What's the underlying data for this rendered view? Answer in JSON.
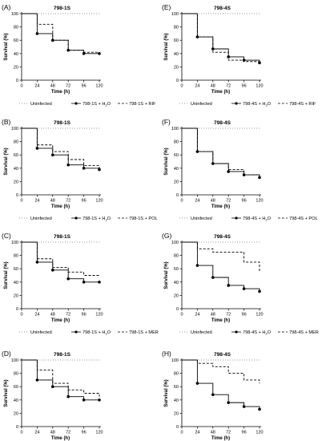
{
  "chart_data": [
    {
      "panel_label": "(A)",
      "title": "798-1S",
      "type": "line",
      "xlabel": "Time (h)",
      "ylabel": "Survival (%)",
      "xlim": [
        0,
        120
      ],
      "ylim": [
        0,
        100
      ],
      "x_ticks": [
        "0",
        "24",
        "48",
        "72",
        "96",
        "120"
      ],
      "y_ticks": [
        "0",
        "20",
        "40",
        "60",
        "80",
        "100"
      ],
      "legend": [
        "Uninfected",
        "798-1S + H₂O",
        "798-1S + RIF"
      ],
      "series": [
        {
          "name": "Uninfected",
          "style": "dotted",
          "x": [
            0,
            120
          ],
          "values": [
            100,
            100
          ]
        },
        {
          "name": "798-1S + H₂O",
          "style": "solid",
          "markers": true,
          "x": [
            0,
            24,
            48,
            72,
            96,
            120
          ],
          "values": [
            100,
            70,
            60,
            45,
            40,
            40
          ]
        },
        {
          "name": "798-1S + RIF",
          "style": "dashed",
          "x": [
            0,
            24,
            48,
            72,
            96,
            120
          ],
          "values": [
            100,
            84,
            60,
            45,
            42,
            42
          ]
        }
      ]
    },
    {
      "panel_label": "(B)",
      "title": "798-1S",
      "type": "line",
      "xlabel": "Time (h)",
      "ylabel": "Survival (%)",
      "xlim": [
        0,
        120
      ],
      "ylim": [
        0,
        100
      ],
      "x_ticks": [
        "0",
        "24",
        "48",
        "72",
        "96",
        "120"
      ],
      "y_ticks": [
        "0",
        "20",
        "40",
        "60",
        "80",
        "100"
      ],
      "legend": [
        "Uninfected",
        "798-1S + H₂O",
        "798-1S + POL"
      ],
      "series": [
        {
          "name": "Uninfected",
          "style": "dotted",
          "x": [
            0,
            120
          ],
          "values": [
            100,
            100
          ]
        },
        {
          "name": "798-1S + H₂O",
          "style": "solid",
          "markers": true,
          "x": [
            0,
            24,
            48,
            72,
            96,
            120
          ],
          "values": [
            100,
            70,
            60,
            45,
            40,
            38
          ]
        },
        {
          "name": "798-1S + POL",
          "style": "dashed",
          "x": [
            0,
            24,
            48,
            72,
            96,
            120
          ],
          "values": [
            100,
            75,
            65,
            53,
            44,
            40
          ]
        }
      ]
    },
    {
      "panel_label": "(C)",
      "title": "798-1S",
      "type": "line",
      "xlabel": "Time (h)",
      "ylabel": "Survival (%)",
      "xlim": [
        0,
        120
      ],
      "ylim": [
        0,
        100
      ],
      "x_ticks": [
        "0",
        "24",
        "48",
        "72",
        "96",
        "120"
      ],
      "y_ticks": [
        "0",
        "20",
        "40",
        "60",
        "80",
        "100"
      ],
      "legend": [
        "Uninfected",
        "798-1S + H₂O",
        "798-1S + MER"
      ],
      "series": [
        {
          "name": "Uninfected",
          "style": "dotted",
          "x": [
            0,
            120
          ],
          "values": [
            100,
            100
          ]
        },
        {
          "name": "798-1S + H₂O",
          "style": "solid",
          "markers": true,
          "x": [
            0,
            24,
            48,
            72,
            96,
            120
          ],
          "values": [
            100,
            70,
            58,
            45,
            40,
            40
          ]
        },
        {
          "name": "798-1S + MER",
          "style": "dashed",
          "x": [
            0,
            24,
            48,
            72,
            96,
            120
          ],
          "values": [
            100,
            75,
            62,
            55,
            50,
            50
          ]
        }
      ]
    },
    {
      "panel_label": "(D)",
      "title": "798-1S",
      "type": "line",
      "xlabel": "Time (h)",
      "ylabel": "Survival (%)",
      "xlim": [
        0,
        120
      ],
      "ylim": [
        0,
        100
      ],
      "x_ticks": [
        "0",
        "24",
        "48",
        "72",
        "96",
        "120"
      ],
      "y_ticks": [
        "0",
        "20",
        "40",
        "60",
        "80",
        "100"
      ],
      "legend": [
        "Uninfected",
        "798-1S + H₂O",
        "798-1S + RIF + POL + MER"
      ],
      "series": [
        {
          "name": "Uninfected",
          "style": "dotted",
          "x": [
            0,
            120
          ],
          "values": [
            100,
            100
          ]
        },
        {
          "name": "798-1S + H₂O",
          "style": "solid",
          "markers": true,
          "x": [
            0,
            24,
            48,
            72,
            96,
            120
          ],
          "values": [
            100,
            70,
            60,
            45,
            40,
            40
          ]
        },
        {
          "name": "798-1S + RIF + POL + MER",
          "style": "dashed",
          "x": [
            0,
            24,
            48,
            72,
            96,
            120
          ],
          "values": [
            100,
            85,
            65,
            55,
            50,
            45
          ]
        }
      ]
    },
    {
      "panel_label": "(E)",
      "title": "798-4S",
      "type": "line",
      "xlabel": "Time (h)",
      "ylabel": "Survival (%)",
      "xlim": [
        0,
        120
      ],
      "ylim": [
        0,
        100
      ],
      "x_ticks": [
        "0",
        "24",
        "48",
        "72",
        "96",
        "120"
      ],
      "y_ticks": [
        "0",
        "20",
        "40",
        "60",
        "80",
        "100"
      ],
      "legend": [
        "Uninfected",
        "798-4S + H₂O",
        "798-4S + RIF"
      ],
      "series": [
        {
          "name": "Uninfected",
          "style": "dotted",
          "x": [
            0,
            120
          ],
          "values": [
            100,
            100
          ]
        },
        {
          "name": "798-4S + H₂O",
          "style": "solid",
          "markers": true,
          "x": [
            0,
            24,
            48,
            72,
            96,
            120
          ],
          "values": [
            100,
            65,
            47,
            35,
            30,
            26
          ]
        },
        {
          "name": "798-4S + RIF",
          "style": "dashed",
          "x": [
            0,
            24,
            48,
            72,
            96,
            120
          ],
          "values": [
            100,
            65,
            42,
            30,
            28,
            25
          ]
        }
      ]
    },
    {
      "panel_label": "(F)",
      "title": "798-4S",
      "type": "line",
      "xlabel": "Time (h)",
      "ylabel": "Survival (%)",
      "xlim": [
        0,
        120
      ],
      "ylim": [
        0,
        100
      ],
      "x_ticks": [
        "0",
        "24",
        "48",
        "72",
        "96",
        "120"
      ],
      "y_ticks": [
        "0",
        "20",
        "40",
        "60",
        "80",
        "100"
      ],
      "legend": [
        "Uninfected",
        "798-4S + H₂O",
        "798-4S + POL"
      ],
      "series": [
        {
          "name": "Uninfected",
          "style": "dotted",
          "x": [
            0,
            120
          ],
          "values": [
            100,
            100
          ]
        },
        {
          "name": "798-4S + H₂O",
          "style": "solid",
          "markers": true,
          "x": [
            0,
            24,
            48,
            72,
            96,
            120
          ],
          "values": [
            100,
            65,
            47,
            35,
            30,
            26
          ]
        },
        {
          "name": "798-4S + POL",
          "style": "dashed",
          "x": [
            0,
            24,
            48,
            72,
            96,
            120
          ],
          "values": [
            100,
            65,
            47,
            38,
            30,
            28
          ]
        }
      ]
    },
    {
      "panel_label": "(G)",
      "title": "798-4S",
      "type": "line",
      "xlabel": "Time (h)",
      "ylabel": "Survival (%)",
      "xlim": [
        0,
        120
      ],
      "ylim": [
        0,
        100
      ],
      "x_ticks": [
        "0",
        "24",
        "48",
        "72",
        "96",
        "120"
      ],
      "y_ticks": [
        "0",
        "20",
        "40",
        "60",
        "80",
        "100"
      ],
      "legend": [
        "Uninfected",
        "798-4S + H₂O",
        "798-4S + MER"
      ],
      "series": [
        {
          "name": "Uninfected",
          "style": "dotted",
          "x": [
            0,
            120
          ],
          "values": [
            100,
            100
          ]
        },
        {
          "name": "798-4S + H₂O",
          "style": "solid",
          "markers": true,
          "x": [
            0,
            24,
            48,
            72,
            96,
            120
          ],
          "values": [
            100,
            65,
            47,
            35,
            30,
            26
          ]
        },
        {
          "name": "798-4S + MER",
          "style": "dashed",
          "x": [
            0,
            24,
            48,
            72,
            96,
            120
          ],
          "values": [
            100,
            90,
            85,
            85,
            70,
            55
          ]
        }
      ]
    },
    {
      "panel_label": "(H)",
      "title": "798-4S",
      "type": "line",
      "xlabel": "Time (h)",
      "ylabel": "Survival (%)",
      "xlim": [
        0,
        120
      ],
      "ylim": [
        0,
        100
      ],
      "x_ticks": [
        "0",
        "24",
        "48",
        "72",
        "96",
        "120"
      ],
      "y_ticks": [
        "0",
        "20",
        "40",
        "60",
        "80",
        "100"
      ],
      "legend": [
        "Uninfected",
        "798-4S + H₂O",
        "798-4S + RIF + POL + MER"
      ],
      "series": [
        {
          "name": "Uninfected",
          "style": "dotted",
          "x": [
            0,
            120
          ],
          "values": [
            100,
            100
          ]
        },
        {
          "name": "798-4S + H₂O",
          "style": "solid",
          "markers": true,
          "x": [
            0,
            24,
            48,
            72,
            96,
            120
          ],
          "values": [
            100,
            65,
            48,
            36,
            30,
            26
          ]
        },
        {
          "name": "798-4S + RIF + POL + MER",
          "style": "dashed",
          "x": [
            0,
            24,
            48,
            72,
            96,
            120
          ],
          "values": [
            100,
            95,
            90,
            80,
            70,
            65
          ]
        }
      ]
    }
  ]
}
